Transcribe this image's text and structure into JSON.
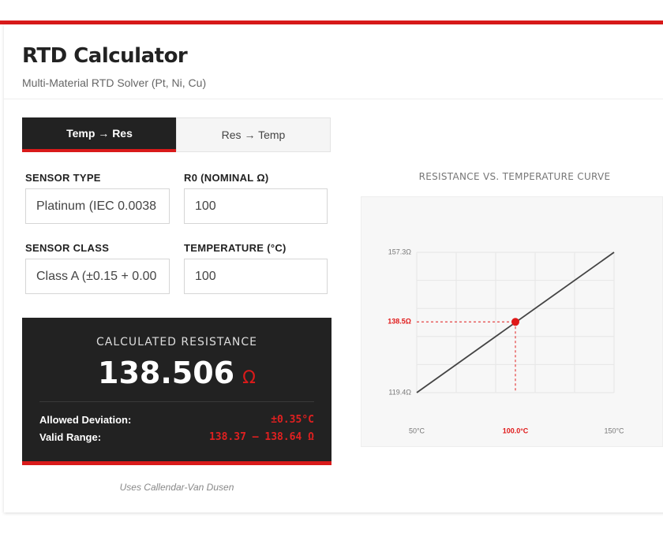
{
  "header": {
    "title": "RTD Calculator",
    "subtitle": "Multi-Material RTD Solver (Pt, Ni, Cu)"
  },
  "tabs": [
    "Temp → Res",
    "Res → Temp"
  ],
  "form": {
    "fields": [
      {
        "label": "SENSOR TYPE",
        "value": "Platinum (IEC 0.0038"
      },
      {
        "label": "R0 (NOMINAL Ω)",
        "value": "100"
      },
      {
        "label": "SENSOR CLASS",
        "value": "Class A (±0.15 + 0.00"
      },
      {
        "label": "TEMPERATURE (°C)",
        "value": "100"
      }
    ]
  },
  "result": {
    "label": "CALCULATED RESISTANCE",
    "value": "138.506",
    "unit": "Ω",
    "rows": [
      {
        "key": "Allowed Deviation:",
        "value": "±0.35°C"
      },
      {
        "key": "Valid Range:",
        "value": "138.37 – 138.64 Ω"
      }
    ]
  },
  "footnote": "Uses Callendar-Van Dusen",
  "chart": {
    "type": "line",
    "title": "RESISTANCE VS. TEMPERATURE CURVE",
    "xlim": [
      50,
      150
    ],
    "ylim": [
      119.4,
      157.3
    ],
    "xticks": [
      {
        "value": 50,
        "label": "50°C"
      },
      {
        "value": 150,
        "label": "150°C"
      }
    ],
    "yticks": [
      {
        "value": 119.4,
        "label": "119.4Ω"
      },
      {
        "value": 157.3,
        "label": "157.3Ω"
      }
    ],
    "x": [
      50,
      150
    ],
    "values": [
      119.4,
      157.3
    ],
    "line_color": "#444",
    "marker": {
      "x": 100,
      "y": 138.5,
      "x_label": "100.0°C",
      "y_label": "138.5Ω",
      "color": "#e01818"
    }
  }
}
